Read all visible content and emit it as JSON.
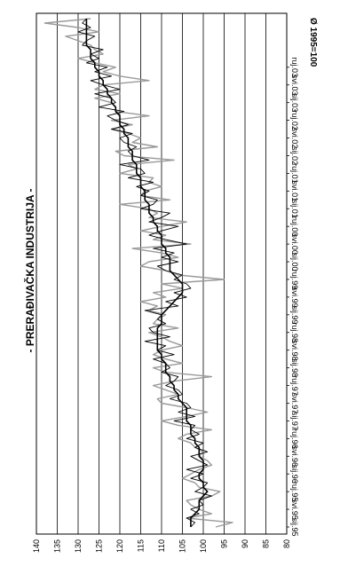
{
  "chart_data": {
    "type": "line",
    "orientation": "rotated-90-clockwise",
    "title": "- PRERAĐIVAČKA INDUSTRIJA -",
    "annotation": "Ø 1995=100",
    "ylim": [
      80,
      140
    ],
    "yticks": [
      80,
      85,
      90,
      95,
      100,
      105,
      110,
      115,
      120,
      125,
      130,
      135,
      140
    ],
    "grid": true,
    "x_tick_labels": [
      "sij.95",
      "svi.95",
      "ruj.95",
      "sij.96",
      "svi.96",
      "ruj.96",
      "sij.97",
      "svi.97",
      "ruj.97",
      "sij.98",
      "svi.98",
      "ruj.98",
      "sij.99",
      "svi.99",
      "ruj.99",
      "sij.00",
      "svi.00",
      "ruj.00",
      "sij.01",
      "svi.01",
      "ruj.01",
      "sij.02",
      "svi.02",
      "ruj.02",
      "sij.03",
      "svi.03",
      "ruj.03"
    ],
    "series": [
      {
        "color": "#9a9a9a",
        "values": [
          97,
          93,
          104,
          98,
          101,
          103,
          104,
          98,
          96,
          101,
          102,
          105,
          103,
          101,
          98,
          99,
          101,
          100,
          102,
          103,
          106,
          104,
          98,
          106,
          110,
          104,
          99,
          104,
          110,
          111,
          106,
          109,
          112,
          107,
          98,
          109,
          112,
          105,
          109,
          112,
          110,
          105,
          108,
          110,
          113,
          106,
          112,
          111,
          109,
          113,
          111,
          115,
          109,
          112,
          105,
          110,
          95,
          106,
          109,
          115,
          113,
          106,
          110,
          117,
          103,
          112,
          109,
          115,
          110,
          104,
          113,
          111,
          113,
          120,
          108,
          115,
          114,
          110,
          113,
          112,
          120,
          116,
          118,
          107,
          119,
          121,
          111,
          117,
          115,
          118,
          122,
          117,
          122,
          113,
          121,
          121,
          122,
          126,
          120,
          126,
          124,
          113,
          120,
          124,
          121,
          126,
          130,
          124,
          126,
          127,
          130,
          133,
          125,
          130,
          138,
          127
        ]
      },
      {
        "color": "#000000",
        "values": [
          103,
          103,
          103,
          102,
          101,
          101,
          101,
          100,
          99,
          100,
          100,
          101,
          101,
          100,
          100,
          100,
          101,
          101,
          101,
          102,
          102,
          103,
          103,
          103,
          104,
          104,
          104,
          104,
          105,
          106,
          106,
          107,
          107,
          108,
          108,
          109,
          109,
          109,
          110,
          110,
          111,
          111,
          111,
          111,
          111,
          111,
          110,
          110,
          110,
          109,
          108,
          107,
          106,
          105,
          105,
          105,
          106,
          107,
          108,
          108,
          108,
          108,
          109,
          109,
          110,
          110,
          110,
          111,
          111,
          112,
          112,
          113,
          113,
          113,
          114,
          114,
          114,
          115,
          115,
          115,
          116,
          116,
          116,
          117,
          117,
          117,
          118,
          118,
          118,
          119,
          119,
          120,
          120,
          120,
          121,
          121,
          122,
          122,
          123,
          123,
          124,
          124,
          125,
          125,
          126,
          126,
          127,
          127,
          127,
          128,
          128,
          128,
          128,
          128,
          128,
          128
        ]
      },
      {
        "color": "#000000",
        "values": [
          103,
          102,
          104,
          101,
          103,
          100,
          101,
          98,
          102,
          100,
          99,
          103,
          100,
          104,
          99,
          101,
          103,
          99,
          102,
          100,
          104,
          101,
          103,
          102,
          107,
          102,
          106,
          103,
          104,
          108,
          105,
          106,
          109,
          107,
          106,
          110,
          108,
          109,
          112,
          107,
          111,
          109,
          114,
          108,
          112,
          113,
          109,
          111,
          110,
          114,
          106,
          109,
          104,
          107,
          103,
          104,
          107,
          105,
          109,
          111,
          106,
          110,
          107,
          112,
          104,
          109,
          113,
          110,
          106,
          113,
          110,
          108,
          115,
          112,
          111,
          115,
          113,
          116,
          112,
          118,
          114,
          115,
          120,
          113,
          117,
          118,
          116,
          119,
          120,
          117,
          122,
          118,
          121,
          123,
          119,
          125,
          121,
          122,
          126,
          120,
          124,
          127,
          122,
          126,
          123,
          128,
          125,
          127,
          124,
          129,
          128,
          126,
          130,
          127,
          129,
          128
        ]
      }
    ]
  }
}
